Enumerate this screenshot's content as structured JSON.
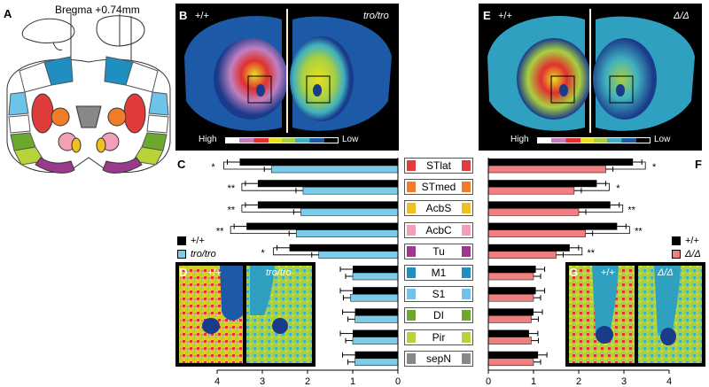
{
  "panels": {
    "A": "A",
    "B": "B",
    "C": "C",
    "D": "D",
    "E": "E",
    "F": "F",
    "G": "G"
  },
  "bregma": "Bregma +0.74mm",
  "genotypes": {
    "wt": "+/+",
    "tro": "tro/tro",
    "delta": "Δ/Δ"
  },
  "scale": {
    "high": "High",
    "low": "Low"
  },
  "regions": [
    "STlat",
    "STmed",
    "AcbS",
    "AcbC",
    "Tu",
    "M1",
    "S1",
    "DI",
    "Pir",
    "sepN"
  ],
  "region_colors": [
    "#e03c3c",
    "#f07c28",
    "#f0c020",
    "#f4a0b4",
    "#9a3a8c",
    "#1e8fc0",
    "#6cc4e8",
    "#6aa82e",
    "#b8d23a",
    "#888888"
  ],
  "colors": {
    "wt": "#000000",
    "tro": "#7ccbe8",
    "delta": "#f08080"
  },
  "legend_left": {
    "wt": "+/+",
    "tro": "tro/tro"
  },
  "legend_right": {
    "wt": "+/+",
    "delta": "Δ/Δ"
  },
  "axis_left": [
    "4",
    "3",
    "2",
    "1",
    "0"
  ],
  "axis_right": [
    "0",
    "1",
    "2",
    "3",
    "4"
  ],
  "sig_left": [
    "*",
    "**",
    "**",
    "**",
    "*",
    "",
    "",
    "",
    "",
    ""
  ],
  "sig_right": [
    "*",
    "*",
    "**",
    "**",
    "**",
    "",
    "",
    "",
    "",
    ""
  ],
  "chart_data": [
    {
      "type": "bar",
      "categories": [
        "STlat",
        "STmed",
        "AcbS",
        "AcbC",
        "Tu",
        "M1",
        "S1",
        "DI",
        "Pir",
        "sepN"
      ],
      "series": [
        {
          "name": "+/+",
          "values": [
            3.5,
            3.1,
            3.1,
            3.35,
            2.4,
            1.0,
            1.0,
            0.95,
            1.0,
            0.95
          ]
        },
        {
          "name": "tro/tro",
          "values": [
            2.8,
            2.1,
            2.15,
            2.25,
            1.75,
            1.0,
            1.05,
            0.95,
            1.0,
            0.95
          ]
        }
      ],
      "xlim": [
        4,
        0
      ]
    },
    {
      "type": "bar",
      "categories": [
        "STlat",
        "STmed",
        "AcbS",
        "AcbC",
        "Tu",
        "M1",
        "S1",
        "DI",
        "Pir",
        "sepN"
      ],
      "series": [
        {
          "name": "+/+",
          "values": [
            3.2,
            2.4,
            2.7,
            2.85,
            1.8,
            1.05,
            1.05,
            1.0,
            0.9,
            1.1
          ]
        },
        {
          "name": "Δ/Δ",
          "values": [
            2.6,
            1.9,
            2.0,
            2.15,
            1.5,
            1.0,
            1.0,
            0.95,
            0.95,
            1.0
          ]
        }
      ],
      "xlim": [
        0,
        4
      ]
    }
  ]
}
